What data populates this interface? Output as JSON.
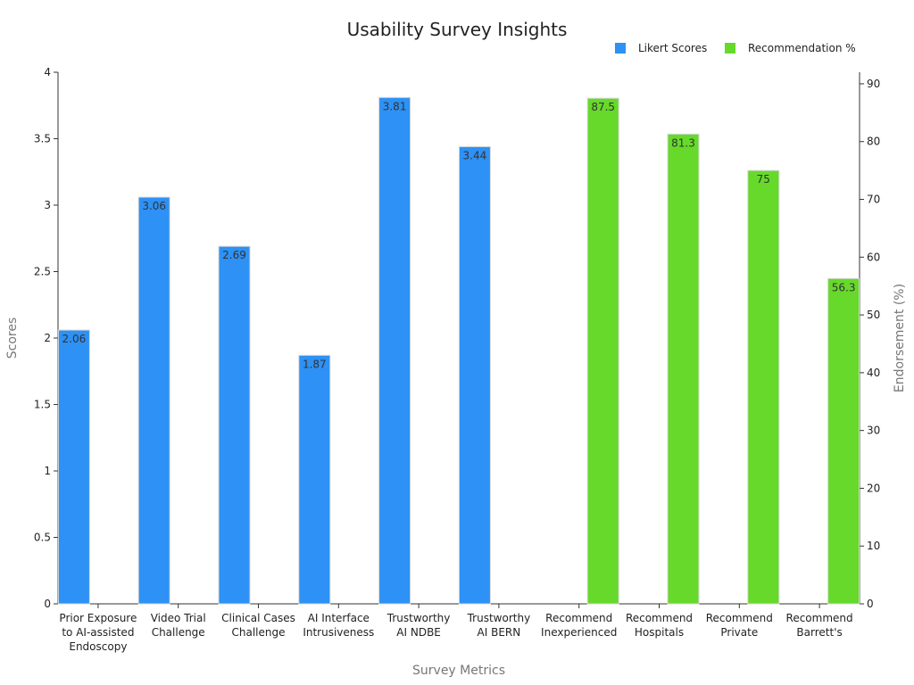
{
  "chart_data": {
    "type": "bar",
    "title": "Usability Survey Insights",
    "xlabel": "Survey Metrics",
    "ylabel": "Scores",
    "y2label": "Endorsement (%)",
    "ylim": [
      0,
      4
    ],
    "y2lim": [
      0,
      92
    ],
    "y_ticks": [
      "0",
      "0.5",
      "1",
      "1.5",
      "2",
      "2.5",
      "3",
      "3.5",
      "4"
    ],
    "y_tick_values": [
      0,
      0.5,
      1,
      1.5,
      2,
      2.5,
      3,
      3.5,
      4
    ],
    "y2_ticks": [
      "0",
      "10",
      "20",
      "30",
      "40",
      "50",
      "60",
      "70",
      "80",
      "90"
    ],
    "y2_tick_values": [
      0,
      10,
      20,
      30,
      40,
      50,
      60,
      70,
      80,
      90
    ],
    "grid": false,
    "legend_position": "top-right",
    "categories": [
      [
        "Prior Exposure",
        "to AI-assisted",
        "Endoscopy"
      ],
      [
        "Video Trial",
        "Challenge"
      ],
      [
        "Clinical Cases",
        "Challenge"
      ],
      [
        "AI Interface",
        "Intrusiveness"
      ],
      [
        "Trustworthy",
        "AI NDBE"
      ],
      [
        "Trustworthy",
        "AI BERN"
      ],
      [
        "Recommend",
        "Inexperienced"
      ],
      [
        "Recommend",
        "Hospitals"
      ],
      [
        "Recommend",
        "Private"
      ],
      [
        "Recommend",
        "Barrett's"
      ]
    ],
    "series": [
      {
        "name": "Likert Scores",
        "axis": "left",
        "color": "#2d91f5",
        "values": [
          2.06,
          3.06,
          2.69,
          1.87,
          3.81,
          3.44,
          null,
          null,
          null,
          null
        ],
        "labels": [
          "2.06",
          "3.06",
          "2.69",
          "1.87",
          "3.81",
          "3.44",
          "",
          "",
          "",
          ""
        ]
      },
      {
        "name": "Recommendation %",
        "axis": "right",
        "color": "#66d92b",
        "values": [
          null,
          null,
          null,
          null,
          null,
          null,
          87.5,
          81.3,
          75,
          56.3
        ],
        "labels": [
          "",
          "",
          "",
          "",
          "",
          "",
          "87.5",
          "81.3",
          "75",
          "56.3"
        ]
      }
    ]
  }
}
